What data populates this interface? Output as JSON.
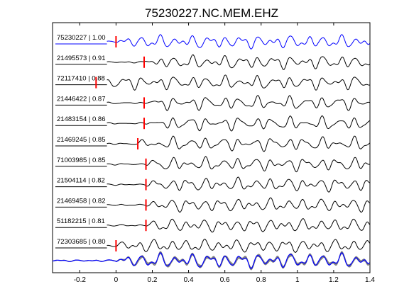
{
  "chart_data": {
    "type": "line",
    "title": "75230227.NC.MEM.EHZ",
    "xlim": [
      -0.35,
      1.4
    ],
    "x_ticks": [
      "-0.2",
      "0",
      "0.2",
      "0.4",
      "0.6",
      "0.8",
      "1",
      "1.2",
      "1.4"
    ],
    "x_tick_values": [
      -0.2,
      0,
      0.2,
      0.4,
      0.6,
      0.8,
      1.0,
      1.2,
      1.4
    ],
    "grid": false,
    "legend": "none",
    "reference_trace_color": "#0000ff",
    "trace_color": "#000000",
    "pick_color": "#ff0000",
    "stack_member_color": "#808080",
    "traces": [
      {
        "label": "75230227 | 1.00",
        "pick_time": 0.0,
        "color": "#0000ff"
      },
      {
        "label": "21495573 | 0.91",
        "pick_time": 0.155,
        "color": "#000000"
      },
      {
        "label": "72117410 | 0.88",
        "pick_time": -0.11,
        "color": "#000000"
      },
      {
        "label": "21446422 | 0.87",
        "pick_time": 0.155,
        "color": "#000000"
      },
      {
        "label": "21483154 | 0.86",
        "pick_time": 0.155,
        "color": "#000000"
      },
      {
        "label": "21469245 | 0.85",
        "pick_time": 0.12,
        "color": "#000000"
      },
      {
        "label": "71003985 | 0.85",
        "pick_time": 0.165,
        "color": "#000000"
      },
      {
        "label": "21504114 | 0.82",
        "pick_time": 0.165,
        "color": "#000000"
      },
      {
        "label": "21469458 | 0.82",
        "pick_time": 0.165,
        "color": "#000000"
      },
      {
        "label": "51182215 | 0.81",
        "pick_time": 0.165,
        "color": "#000000"
      },
      {
        "label": "72303685 | 0.80",
        "pick_time": 0.0,
        "color": "#000000"
      }
    ],
    "stack": {
      "colors": [
        "#0000ff",
        "#808080"
      ]
    }
  }
}
